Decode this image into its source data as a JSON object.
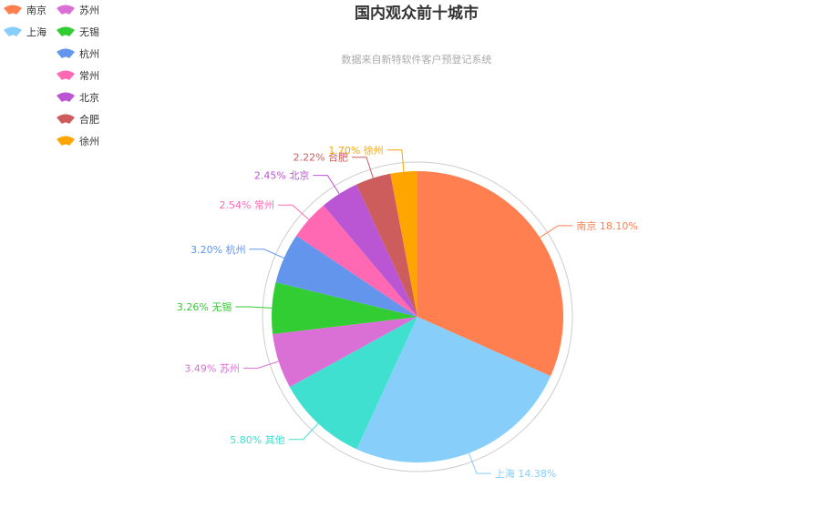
{
  "chart_data": {
    "type": "pie",
    "title": "国内观众前十城市",
    "subtitle": "数据来自新特软件客户预登记系统",
    "slices": [
      {
        "name": "南京",
        "percent": 18.1,
        "label": "南京 18.10%",
        "color": "#ff7f50"
      },
      {
        "name": "上海",
        "percent": 14.38,
        "label": "上海 14.38%",
        "color": "#87cefa"
      },
      {
        "name": "其他",
        "percent": 5.8,
        "label": "5.80% 其他",
        "color": "#40e0d0"
      },
      {
        "name": "苏州",
        "percent": 3.49,
        "label": "3.49% 苏州",
        "color": "#da70d6"
      },
      {
        "name": "无锡",
        "percent": 3.26,
        "label": "3.26% 无锡",
        "color": "#32cd32"
      },
      {
        "name": "杭州",
        "percent": 3.2,
        "label": "3.20% 杭州",
        "color": "#6495ed"
      },
      {
        "name": "常州",
        "percent": 2.54,
        "label": "2.54% 常州",
        "color": "#ff69b4"
      },
      {
        "name": "北京",
        "percent": 2.45,
        "label": "2.45% 北京",
        "color": "#ba55d3"
      },
      {
        "name": "合肥",
        "percent": 2.22,
        "label": "2.22% 合肥",
        "color": "#cd5c5c"
      },
      {
        "name": "徐州",
        "percent": 1.7,
        "label": "1.70% 徐州",
        "color": "#ffa500"
      }
    ],
    "legend": {
      "placement": "top-left",
      "columns": [
        [
          "南京",
          "上海"
        ],
        [
          "苏州",
          "无锡",
          "杭州",
          "常州",
          "北京",
          "合肥",
          "徐州"
        ]
      ]
    },
    "outer_ring_color": "#cccccc"
  }
}
